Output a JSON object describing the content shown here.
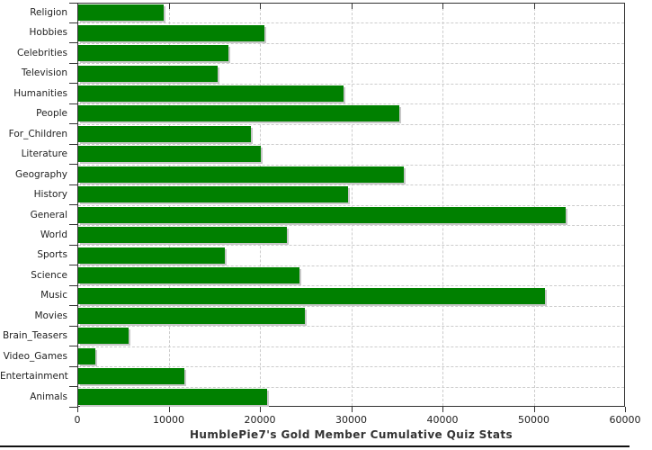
{
  "title": "HumblePie7's Gold Member Cumulative Quiz Stats",
  "colors": {
    "bar": "#008000",
    "bar_shadow": "#c8c8c8",
    "grid": "#cccccc",
    "frame": "#333333",
    "text": "#222222",
    "separator": "#111111",
    "background": "#ffffff"
  },
  "chart_data": {
    "type": "bar",
    "orientation": "horizontal",
    "title": "HumblePie7's Gold Member Cumulative Quiz Stats",
    "xlabel": "",
    "ylabel": "",
    "categories": [
      "Religion",
      "Hobbies",
      "Celebrities",
      "Television",
      "Humanities",
      "People",
      "For_Children",
      "Literature",
      "Geography",
      "History",
      "General",
      "World",
      "Sports",
      "Science",
      "Music",
      "Movies",
      "Brain_Teasers",
      "Video_Games",
      "Entertainment",
      "Animals"
    ],
    "values": [
      9400,
      20400,
      16500,
      15300,
      29100,
      35200,
      18900,
      20000,
      35700,
      29600,
      53400,
      22900,
      16100,
      24200,
      51100,
      24800,
      5500,
      1900,
      11600,
      20700
    ],
    "xlim": [
      0,
      60000
    ],
    "x_ticks": [
      0,
      10000,
      20000,
      30000,
      40000,
      50000,
      60000
    ],
    "x_tick_labels": [
      "0",
      "10000",
      "20000",
      "30000",
      "40000",
      "50000",
      "60000"
    ],
    "grid": true,
    "grid_style": "dashed",
    "legend": false
  }
}
